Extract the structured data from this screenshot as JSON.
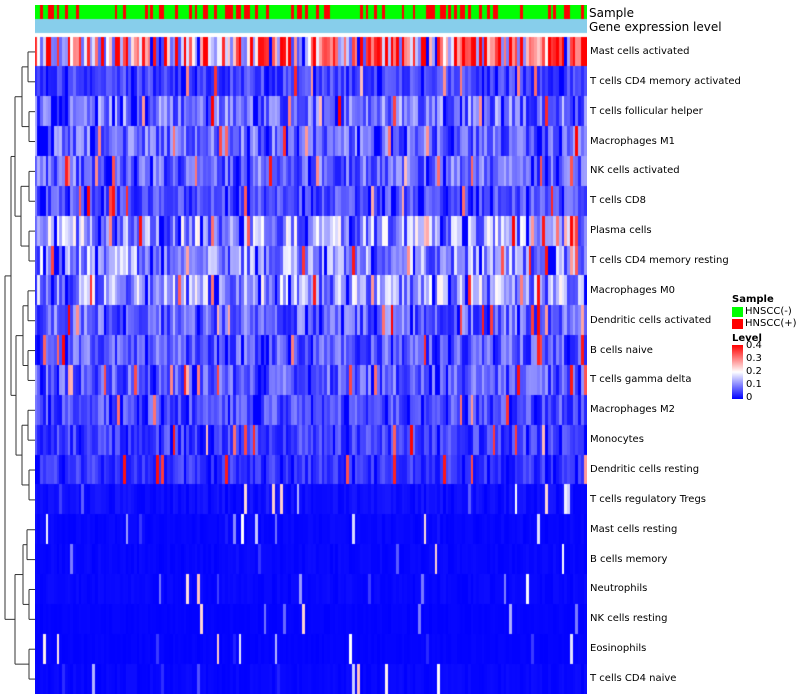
{
  "chart_data": {
    "type": "heatmap",
    "title": "",
    "n_samples": 200,
    "tracks": [
      {
        "label": "Sample"
      },
      {
        "label": "Gene expression level"
      }
    ],
    "rows": [
      {
        "label": "Mast cells activated",
        "mean": 0.27
      },
      {
        "label": "T cells CD4 memory activated",
        "mean": 0.05
      },
      {
        "label": "T cells follicular helper",
        "mean": 0.09
      },
      {
        "label": "Macrophages M1",
        "mean": 0.08
      },
      {
        "label": "NK cells activated",
        "mean": 0.08
      },
      {
        "label": "T cells CD8",
        "mean": 0.06
      },
      {
        "label": "Plasma cells",
        "mean": 0.12
      },
      {
        "label": "T cells CD4 memory resting",
        "mean": 0.11
      },
      {
        "label": "Macrophages M0",
        "mean": 0.12
      },
      {
        "label": "Dendritic cells activated",
        "mean": 0.08
      },
      {
        "label": "B cells naive",
        "mean": 0.07
      },
      {
        "label": "T cells gamma delta",
        "mean": 0.07
      },
      {
        "label": "Macrophages M2",
        "mean": 0.06
      },
      {
        "label": "Monocytes",
        "mean": 0.05
      },
      {
        "label": "Dendritic cells resting",
        "mean": 0.04
      },
      {
        "label": "T cells regulatory  Tregs",
        "mean": 0.02
      },
      {
        "label": "Mast cells resting",
        "mean": 0.01
      },
      {
        "label": "B cells memory",
        "mean": 0.01
      },
      {
        "label": "Neutrophils",
        "mean": 0.01
      },
      {
        "label": "NK cells resting",
        "mean": 0.005
      },
      {
        "label": "Eosinophils",
        "mean": 0.005
      },
      {
        "label": "T cells CD4 naive",
        "mean": 0.01
      }
    ],
    "value_range": [
      0,
      0.4
    ],
    "colorscale": [
      "#0000ff",
      "#ffffff",
      "#ff0000"
    ]
  },
  "legend": {
    "sample_title": "Sample",
    "groups": [
      {
        "label": "HNSCC(-)",
        "color": "#00ff00"
      },
      {
        "label": "HNSCC(+)",
        "color": "#ff0000"
      }
    ],
    "level_title": "Level",
    "level_ticks": [
      "0.4",
      "0.3",
      "0.2",
      "0.1",
      "0"
    ],
    "expression_track_color": "#87ceeb"
  }
}
